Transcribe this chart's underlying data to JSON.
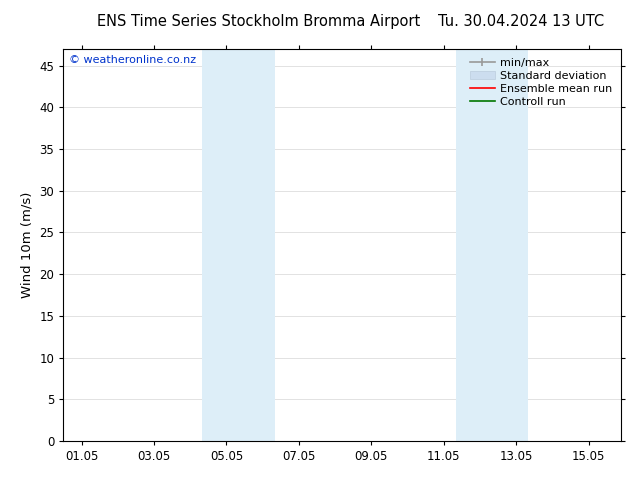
{
  "title_left": "ENS Time Series Stockholm Bromma Airport",
  "title_right": "Tu. 30.04.2024 13 UTC",
  "ylabel": "Wind 10m (m/s)",
  "ylim": [
    0,
    47
  ],
  "yticks": [
    0,
    5,
    10,
    15,
    20,
    25,
    30,
    35,
    40,
    45
  ],
  "xtick_labels": [
    "01.05",
    "03.05",
    "05.05",
    "07.05",
    "09.05",
    "11.05",
    "13.05",
    "15.05"
  ],
  "xtick_positions": [
    0,
    2,
    4,
    6,
    8,
    10,
    12,
    14
  ],
  "xlim": [
    -0.5,
    14.9
  ],
  "shaded_bands": [
    {
      "x_start": 3.33,
      "x_end": 5.33,
      "color": "#ddeef8"
    },
    {
      "x_start": 10.33,
      "x_end": 12.33,
      "color": "#ddeef8"
    }
  ],
  "background_color": "#ffffff",
  "plot_bg_color": "#ffffff",
  "grid_color": "#dddddd",
  "watermark_text": "© weatheronline.co.nz",
  "watermark_color": "#0033cc",
  "legend_items": [
    {
      "label": "min/max",
      "color": "#aaaaaa"
    },
    {
      "label": "Standard deviation",
      "color": "#cce0f0"
    },
    {
      "label": "Ensemble mean run",
      "color": "#ff0000"
    },
    {
      "label": "Controll run",
      "color": "#007700"
    }
  ],
  "title_fontsize": 10.5,
  "axis_label_fontsize": 9.5,
  "tick_fontsize": 8.5,
  "legend_fontsize": 8,
  "watermark_fontsize": 8
}
